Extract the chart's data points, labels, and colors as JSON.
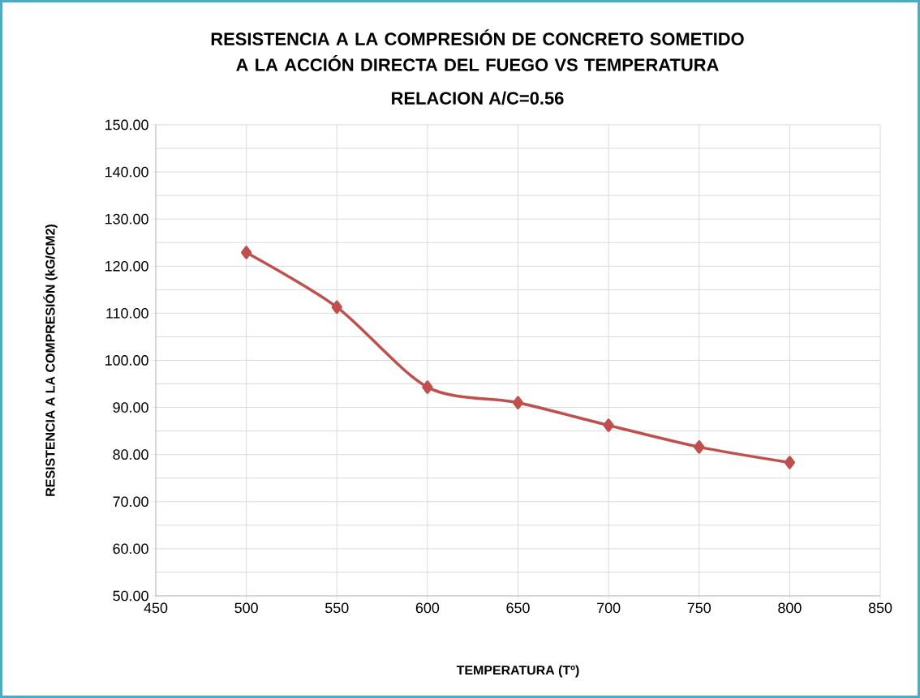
{
  "chart_data": {
    "type": "line",
    "title": "RESISTENCIA A LA COMPRESIÓN DE CONCRETO SOMETIDO A LA ACCIÓN DIRECTA DEL FUEGO VS TEMPERATURA",
    "subtitle": "RELACION A/C=0.56",
    "xlabel": "TEMPERATURA (Tº)",
    "ylabel": "RESISTENCIA A LA COMPRESIÓN (kG/CM2)",
    "x": [
      500,
      550,
      600,
      650,
      700,
      750,
      800
    ],
    "series": [
      {
        "color": "#c0504d",
        "values": [
          122.9,
          111.3,
          94.3,
          91.0,
          86.2,
          81.6,
          78.3
        ]
      }
    ],
    "xlim": [
      450,
      850
    ],
    "xticks": [
      450,
      500,
      550,
      600,
      650,
      700,
      750,
      800,
      850
    ],
    "ylim": [
      50,
      150
    ],
    "yticks": [
      {
        "value": 50,
        "label": "50.00"
      },
      {
        "value": 60,
        "label": "60.00"
      },
      {
        "value": 70,
        "label": "70.00"
      },
      {
        "value": 80,
        "label": "80.00"
      },
      {
        "value": 90,
        "label": "90.00"
      },
      {
        "value": 100,
        "label": "100.00"
      },
      {
        "value": 110,
        "label": "110.00"
      },
      {
        "value": 120,
        "label": "120.00"
      },
      {
        "value": 130,
        "label": "130.00"
      },
      {
        "value": 140,
        "label": "140.00"
      },
      {
        "value": 150,
        "label": "150.00"
      }
    ],
    "grid": true,
    "marker": "diamond",
    "line_style": "solid"
  }
}
